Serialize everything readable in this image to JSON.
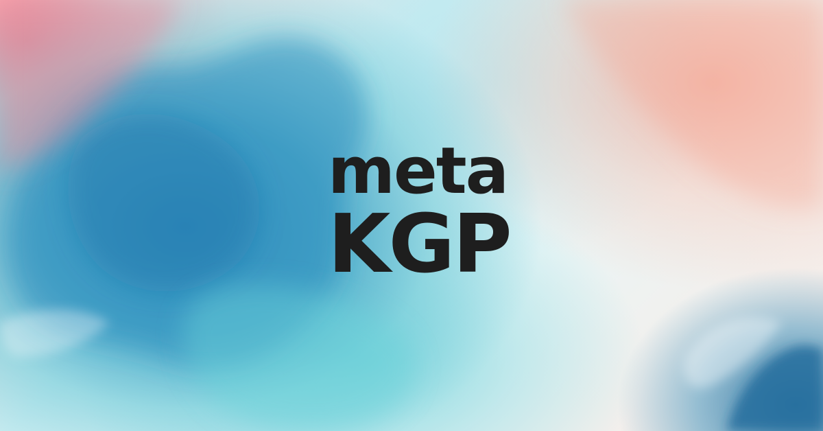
{
  "logo": {
    "line1": "meta",
    "line2": "KGP",
    "text_color": "#1e1e1e"
  },
  "background": {
    "style": "watercolor",
    "colors": [
      "#2a84b8",
      "#5acdd6",
      "#ec788a",
      "#f6a896",
      "#2470a0",
      "#e8f6f7"
    ]
  }
}
